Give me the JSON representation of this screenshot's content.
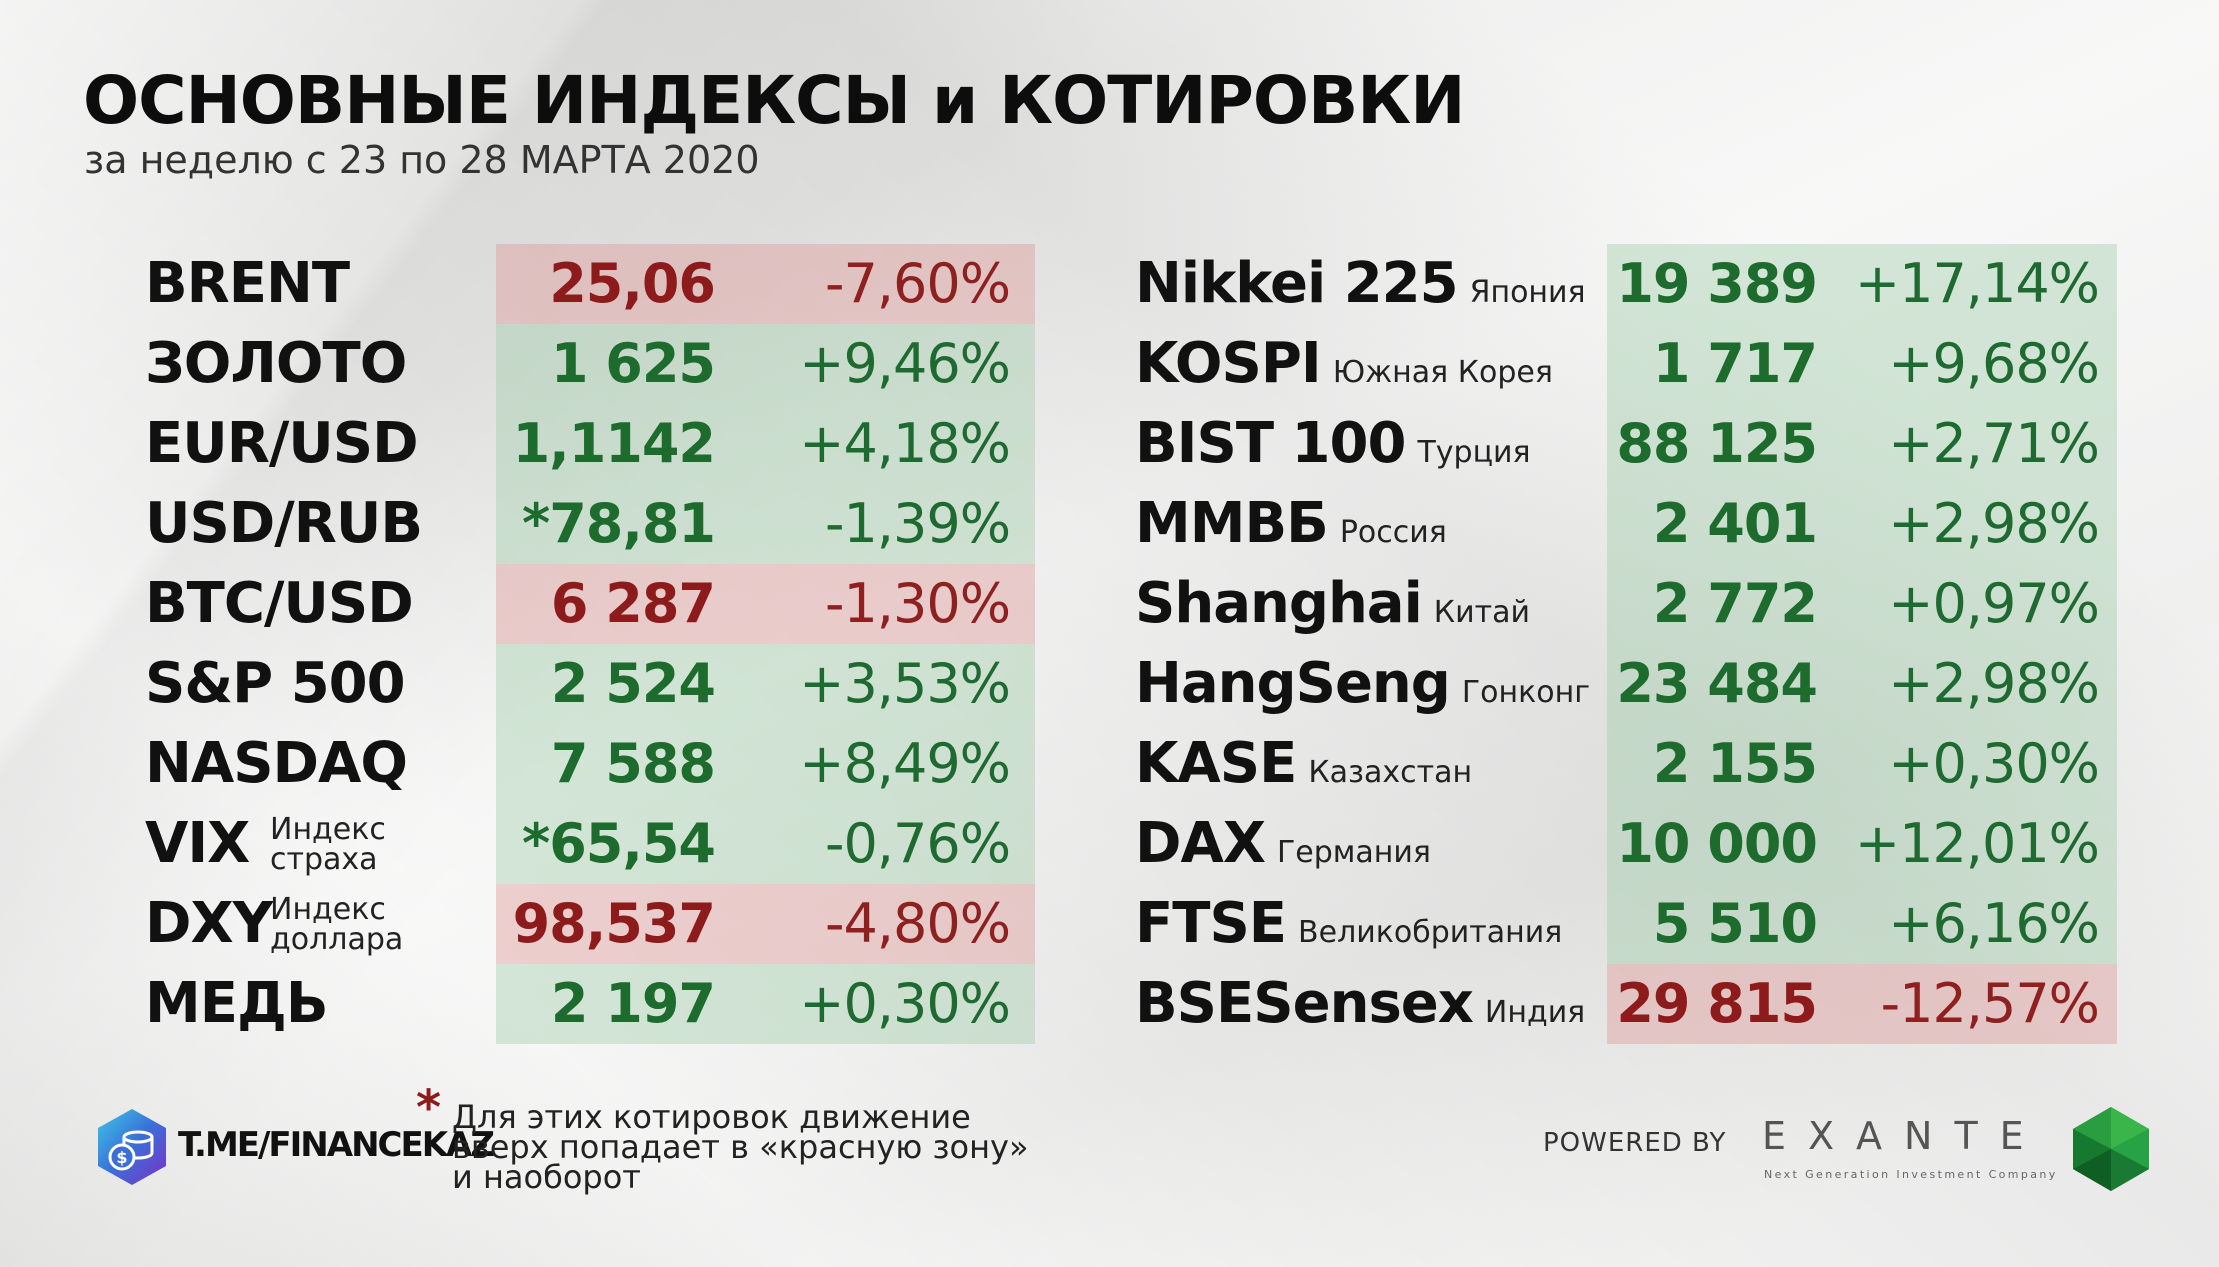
{
  "header": {
    "title": "ОСНОВНЫЕ ИНДЕКСЫ и КОТИРОВКИ",
    "subtitle": "за неделю с 23 по 28 МАРТА 2020"
  },
  "colors": {
    "up_text": "#1e6b2e",
    "down_text": "#8e1b1b",
    "up_band": "#a0cdaa",
    "down_band": "#de9e9c"
  },
  "left": [
    {
      "name": "BRENT",
      "value": "25,06",
      "change": "-7,60%",
      "trend": "down"
    },
    {
      "name": "ЗОЛОТО",
      "value": "1 625",
      "change": "+9,46%",
      "trend": "up"
    },
    {
      "name": "EUR/USD",
      "value": "1,1142",
      "change": "+4,18%",
      "trend": "up"
    },
    {
      "name": "USD/RUB",
      "value": "*78,81",
      "change": "-1,39%",
      "trend": "up"
    },
    {
      "name": "BTC/USD",
      "value": "6 287",
      "change": "-1,30%",
      "trend": "down"
    },
    {
      "name": "S&P 500",
      "value": "2 524",
      "change": "+3,53%",
      "trend": "up"
    },
    {
      "name": "NASDAQ",
      "value": "7 588",
      "change": "+8,49%",
      "trend": "up"
    },
    {
      "name": "VIX",
      "sub1": "Индекс",
      "sub2": "страха",
      "value": "*65,54",
      "change": "-0,76%",
      "trend": "up"
    },
    {
      "name": "DXY",
      "sub1": "Индекс",
      "sub2": "доллара",
      "value": "98,537",
      "change": "-4,80%",
      "trend": "down"
    },
    {
      "name": "МЕДЬ",
      "value": "2 197",
      "change": "+0,30%",
      "trend": "up"
    }
  ],
  "right": [
    {
      "name": "Nikkei 225",
      "country": "Япония",
      "value": "19 389",
      "change": "+17,14%",
      "trend": "up"
    },
    {
      "name": "KOSPI",
      "country": "Южная Корея",
      "value": "1 717",
      "change": "+9,68%",
      "trend": "up"
    },
    {
      "name": "BIST 100",
      "country": "Турция",
      "value": "88 125",
      "change": "+2,71%",
      "trend": "up"
    },
    {
      "name": "ММВБ",
      "country": "Россия",
      "value": "2 401",
      "change": "+2,98%",
      "trend": "up"
    },
    {
      "name": "Shanghai",
      "country": "Китай",
      "value": "2 772",
      "change": "+0,97%",
      "trend": "up"
    },
    {
      "name": "HangSeng",
      "country": "Гонконг",
      "value": "23 484",
      "change": "+2,98%",
      "trend": "up"
    },
    {
      "name": "KASE",
      "country": "Казахстан",
      "value": "2 155",
      "change": "+0,30%",
      "trend": "up"
    },
    {
      "name": "DAX",
      "country": "Германия",
      "value": "10 000",
      "change": "+12,01%",
      "trend": "up"
    },
    {
      "name": "FTSE",
      "country": "Великобритания",
      "value": "5 510",
      "change": "+6,16%",
      "trend": "up"
    },
    {
      "name": "BSESensex",
      "country": "Индия",
      "value": "29 815",
      "change": "-12,57%",
      "trend": "down"
    }
  ],
  "footer": {
    "channel": "T.ME/FINANCEKAZ",
    "asterisk": "*",
    "note_lines": [
      "Для этих котировок движение",
      "вверх попадает в «красную зону»",
      "и наоборот"
    ],
    "powered_by": "POWERED BY",
    "brand": "EXANTE",
    "brand_tagline": "Next Generation Investment Company",
    "logo_icon": "coins-hexagon-icon",
    "gem_icon": "green-gem-icon"
  }
}
